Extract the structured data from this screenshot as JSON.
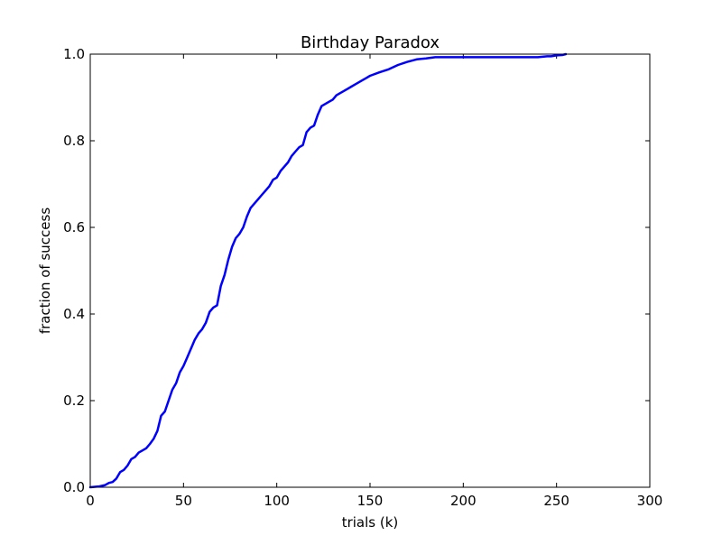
{
  "chart_data": {
    "type": "line",
    "title": "Birthday Paradox",
    "xlabel": "trials (k)",
    "ylabel": "fraction of success",
    "xlim": [
      0,
      300
    ],
    "ylim": [
      0,
      1.0
    ],
    "grid": false,
    "legend": "none",
    "x_ticks": [
      0,
      50,
      100,
      150,
      200,
      250,
      300
    ],
    "x_tick_labels": [
      "0",
      "50",
      "100",
      "150",
      "200",
      "250",
      "300"
    ],
    "y_ticks": [
      0.0,
      0.2,
      0.4,
      0.6,
      0.8,
      1.0
    ],
    "y_tick_labels": [
      "0.0",
      "0.2",
      "0.4",
      "0.6",
      "0.8",
      "1.0"
    ],
    "series": [
      {
        "color": "#0000ff",
        "x": [
          0,
          5,
          8,
          10,
          12,
          14,
          16,
          18,
          20,
          22,
          24,
          26,
          28,
          30,
          32,
          34,
          36,
          38,
          40,
          42,
          44,
          46,
          48,
          50,
          52,
          54,
          56,
          58,
          60,
          62,
          64,
          66,
          68,
          70,
          72,
          74,
          76,
          78,
          80,
          82,
          84,
          86,
          88,
          90,
          92,
          94,
          96,
          98,
          100,
          102,
          104,
          106,
          108,
          110,
          112,
          114,
          116,
          118,
          120,
          122,
          124,
          126,
          128,
          130,
          132,
          134,
          136,
          138,
          140,
          142,
          144,
          146,
          148,
          150,
          155,
          160,
          165,
          170,
          175,
          180,
          185,
          190,
          200,
          210,
          220,
          230,
          240,
          245,
          247,
          250,
          253,
          255
        ],
        "y": [
          0.0,
          0.002,
          0.005,
          0.01,
          0.012,
          0.02,
          0.035,
          0.04,
          0.05,
          0.065,
          0.07,
          0.08,
          0.085,
          0.09,
          0.1,
          0.112,
          0.13,
          0.165,
          0.175,
          0.2,
          0.225,
          0.24,
          0.265,
          0.28,
          0.3,
          0.32,
          0.34,
          0.355,
          0.365,
          0.38,
          0.405,
          0.415,
          0.42,
          0.465,
          0.49,
          0.525,
          0.555,
          0.575,
          0.585,
          0.6,
          0.625,
          0.645,
          0.655,
          0.665,
          0.675,
          0.685,
          0.695,
          0.71,
          0.715,
          0.73,
          0.74,
          0.75,
          0.765,
          0.775,
          0.785,
          0.79,
          0.82,
          0.83,
          0.835,
          0.86,
          0.88,
          0.885,
          0.89,
          0.895,
          0.905,
          0.91,
          0.915,
          0.92,
          0.925,
          0.93,
          0.935,
          0.94,
          0.945,
          0.95,
          0.958,
          0.965,
          0.975,
          0.982,
          0.988,
          0.99,
          0.993,
          0.993,
          0.993,
          0.993,
          0.993,
          0.993,
          0.993,
          0.995,
          0.995,
          0.997,
          0.998,
          1.0
        ]
      }
    ]
  }
}
